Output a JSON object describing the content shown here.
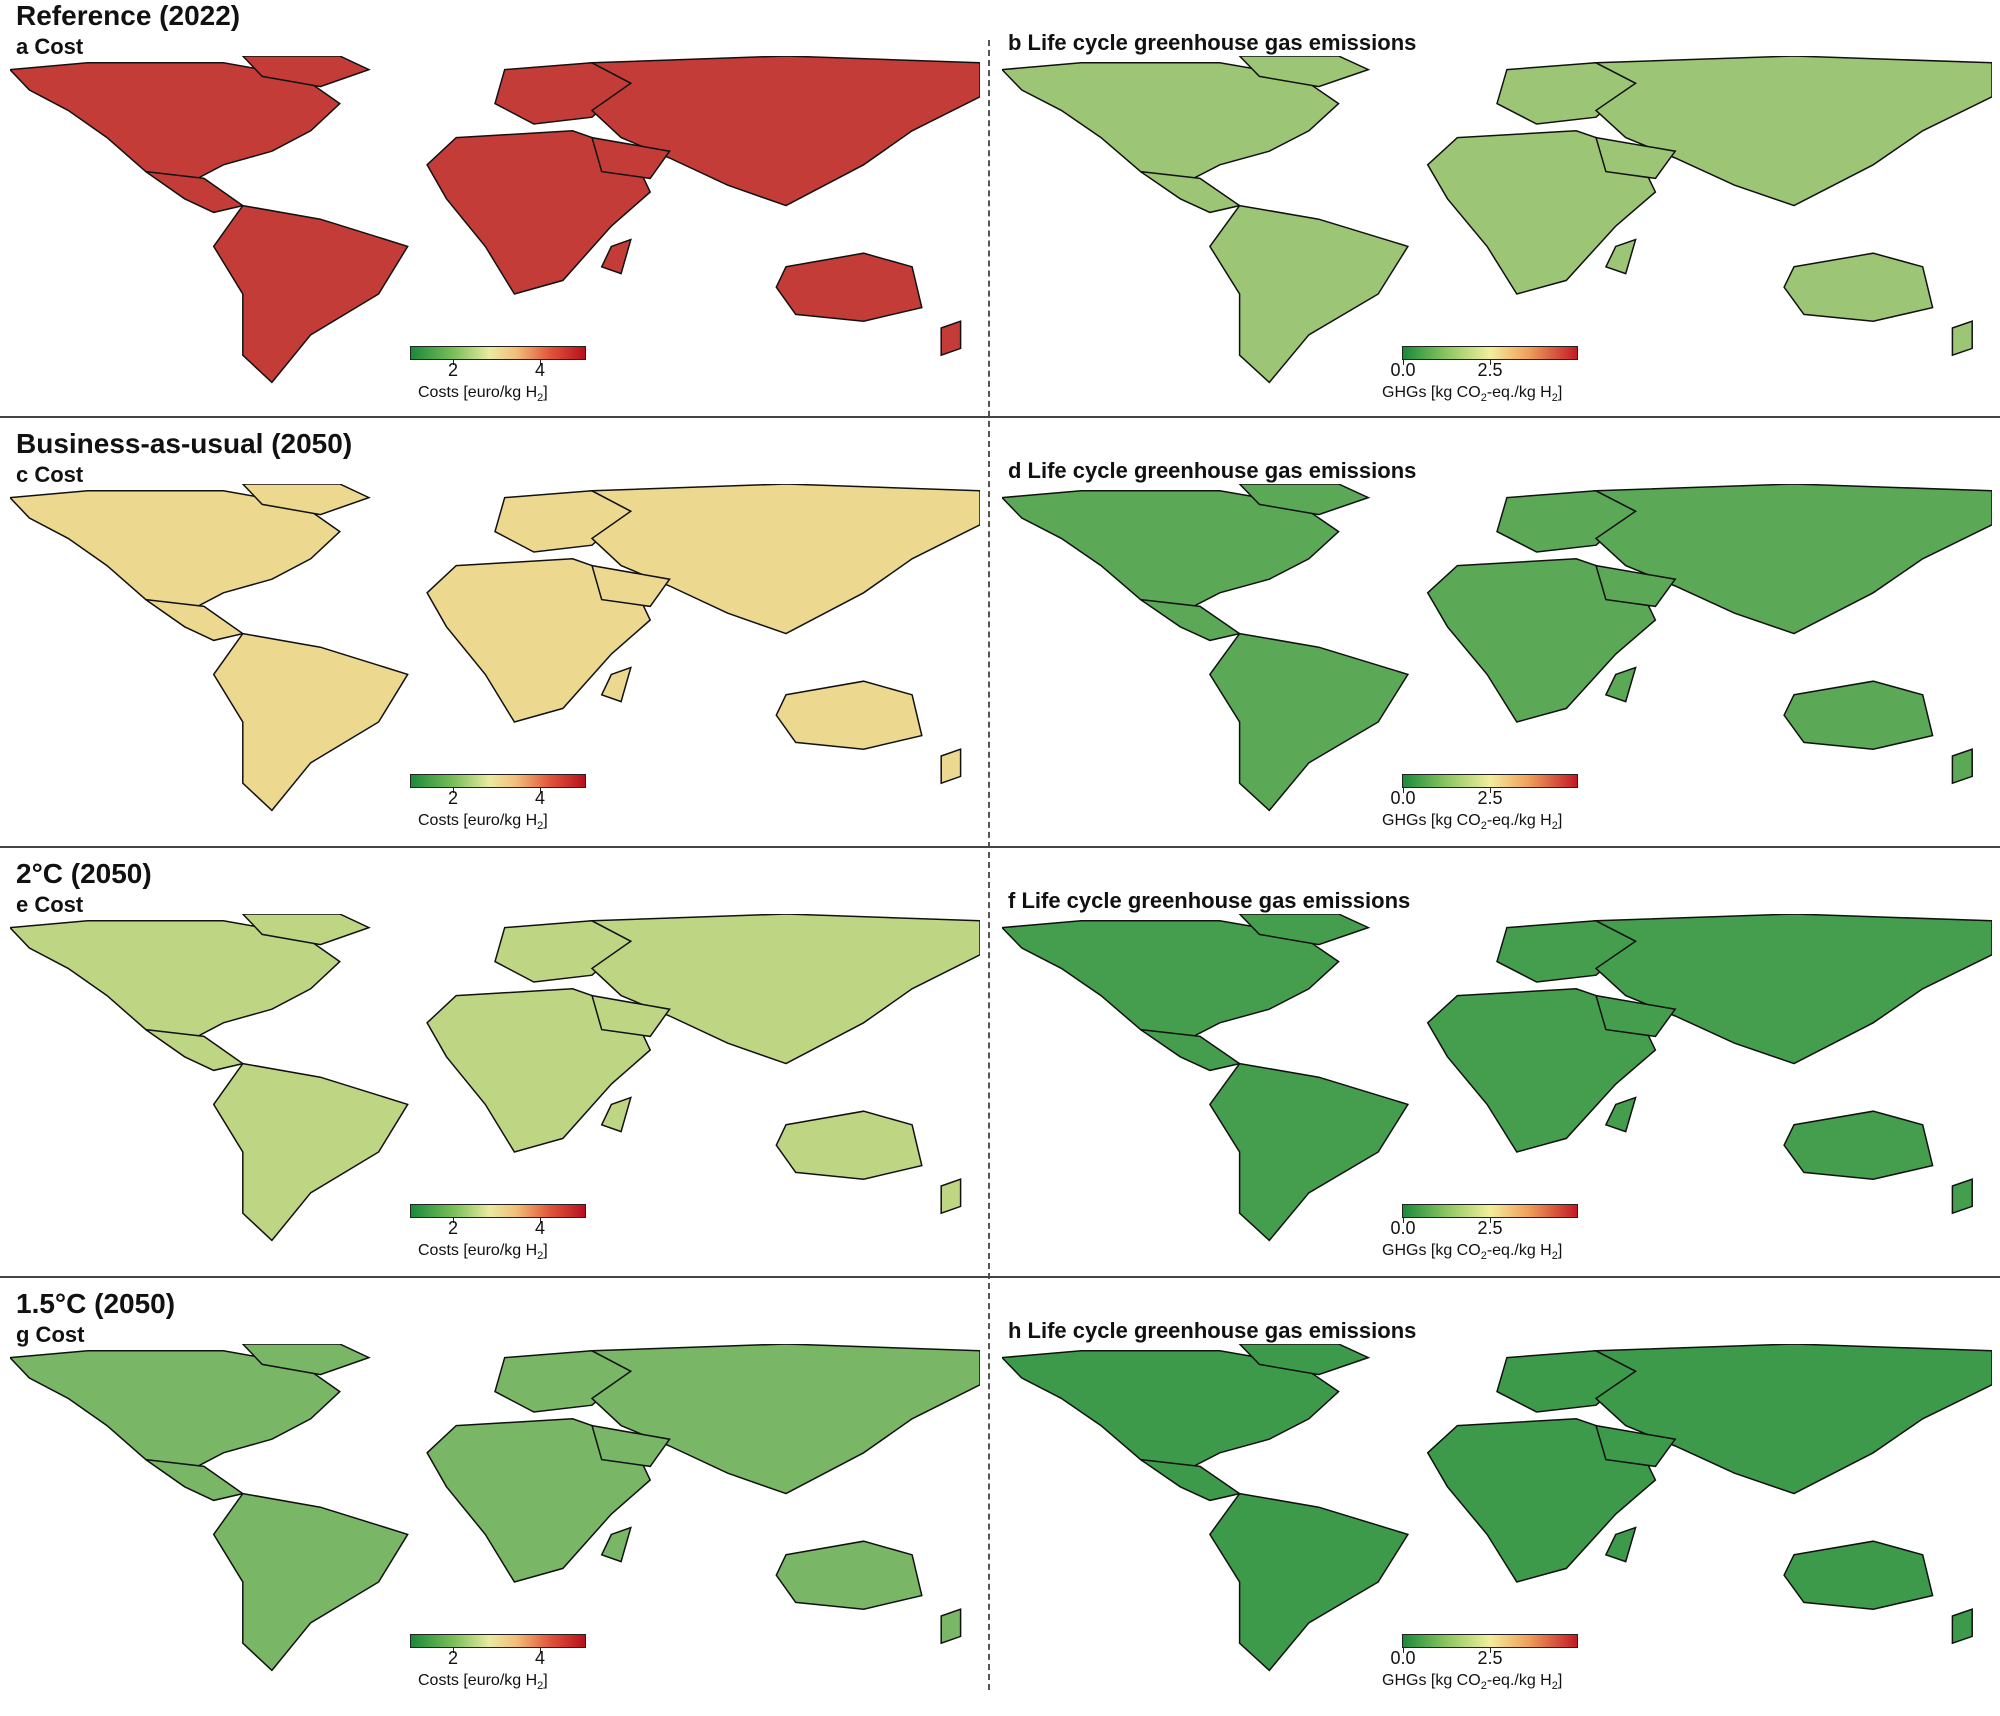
{
  "figure": {
    "rows": [
      {
        "title": "Reference (2022)",
        "cost_label": "a Cost",
        "ghg_label": "b Life cycle greenhouse gas emissions",
        "cost_level": 0.9,
        "ghg_level": 0.3
      },
      {
        "title": "Business-as-usual (2050)",
        "cost_label": "c Cost",
        "ghg_label": "d Life cycle greenhouse gas emissions",
        "cost_level": 0.55,
        "ghg_level": 0.15
      },
      {
        "title": "2°C (2050)",
        "cost_label": "e Cost",
        "ghg_label": "f Life cycle greenhouse gas emissions",
        "cost_level": 0.38,
        "ghg_level": 0.1
      },
      {
        "title": "1.5°C (2050)",
        "cost_label": "g Cost",
        "ghg_label": "h Life cycle greenhouse gas emissions",
        "cost_level": 0.22,
        "ghg_level": 0.08
      }
    ],
    "cost_colorbar": {
      "ticks": [
        "2",
        "4"
      ],
      "title_main": "Costs [euro/kg H",
      "title_sub": "2",
      "title_end": "]"
    },
    "ghg_colorbar": {
      "ticks": [
        "0.0",
        "2.5"
      ],
      "title_main": "GHGs [kg CO",
      "title_sub": "2",
      "title_mid": "-eq./kg H",
      "title_sub2": "2",
      "title_end": "]"
    },
    "colors": {
      "low": "#1a8a3a",
      "mid": "#f2ee9c",
      "high": "#b8101e"
    }
  }
}
